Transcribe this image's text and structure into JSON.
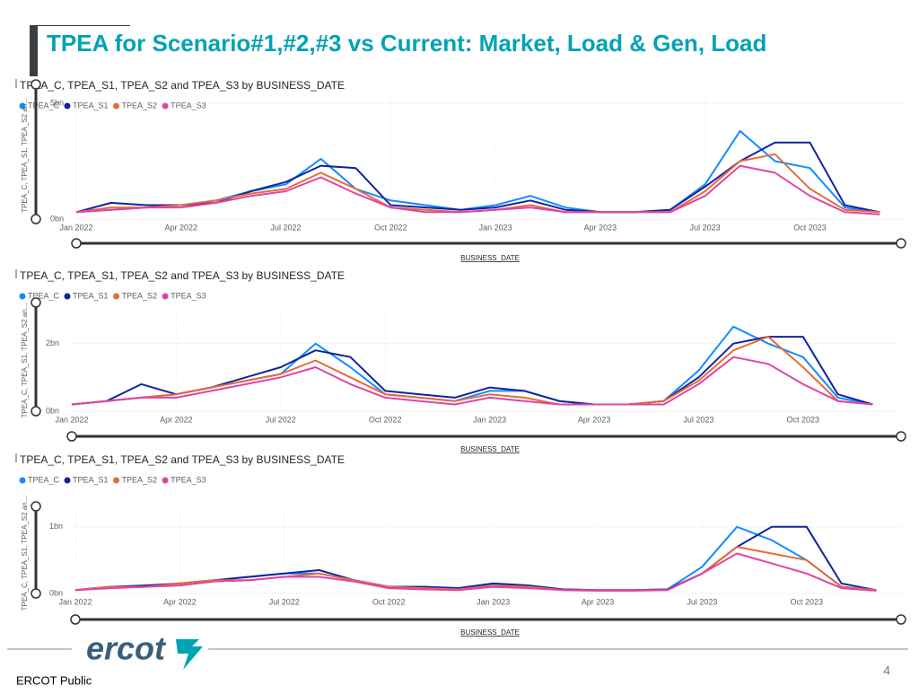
{
  "slide": {
    "title": "TPEA for Scenario#1,#2,#3 vs Current: Market, Load & Gen, Load",
    "logo": "ercot",
    "footer": "ERCOT Public",
    "page_number": "4"
  },
  "chart_data": [
    {
      "type": "line",
      "title": "TPEA_C, TPEA_S1, TPEA_S2 and TPEA_S3 by BUSINESS_DATE",
      "y_label": "TPEA_C, TPEA_S1, TPEA_S2 an...",
      "x_label": "BUSINESS_DATE",
      "x": [
        "Jan 2022",
        null,
        null,
        "Apr 2022",
        null,
        null,
        "Jul 2022",
        null,
        null,
        "Oct 2022",
        null,
        null,
        "Jan 2023",
        null,
        null,
        "Apr 2023",
        null,
        null,
        "Jul 2023",
        null,
        null,
        "Oct 2023",
        null,
        null
      ],
      "ylim": [
        0,
        5.5
      ],
      "yticks": [
        {
          "value": 0,
          "label": "0bn"
        },
        {
          "value": 5,
          "label": "5bn"
        }
      ],
      "grid": true,
      "series": [
        {
          "name": "TPEA_C",
          "color": "#118DFF",
          "values": [
            0.3,
            0.4,
            0.5,
            0.6,
            0.8,
            1.2,
            1.5,
            2.6,
            1.3,
            0.8,
            0.6,
            0.4,
            0.6,
            1.0,
            0.5,
            0.3,
            0.3,
            0.4,
            1.5,
            3.8,
            2.5,
            2.2,
            0.5,
            0.3
          ]
        },
        {
          "name": "TPEA_S1",
          "color": "#12239E",
          "values": [
            0.3,
            0.7,
            0.6,
            0.6,
            0.7,
            1.2,
            1.6,
            2.3,
            2.2,
            0.6,
            0.5,
            0.4,
            0.5,
            0.8,
            0.4,
            0.3,
            0.3,
            0.4,
            1.4,
            2.5,
            3.3,
            3.3,
            0.6,
            0.3
          ]
        },
        {
          "name": "TPEA_S2",
          "color": "#E66C37",
          "values": [
            0.3,
            0.5,
            0.5,
            0.6,
            0.8,
            1.1,
            1.3,
            2.0,
            1.3,
            0.5,
            0.4,
            0.3,
            0.4,
            0.6,
            0.3,
            0.3,
            0.3,
            0.3,
            1.2,
            2.5,
            2.8,
            1.3,
            0.4,
            0.3
          ]
        },
        {
          "name": "TPEA_S3",
          "color": "#E044A7",
          "values": [
            0.3,
            0.4,
            0.5,
            0.5,
            0.7,
            1.0,
            1.2,
            1.8,
            1.1,
            0.5,
            0.3,
            0.3,
            0.4,
            0.5,
            0.3,
            0.3,
            0.3,
            0.3,
            1.0,
            2.3,
            2.0,
            1.0,
            0.3,
            0.2
          ]
        }
      ]
    },
    {
      "type": "line",
      "title": "TPEA_C, TPEA_S1, TPEA_S2 and TPEA_S3 by BUSINESS_DATE",
      "y_label": "TPEA_C, TPEA_S1, TPEA_S2 an...",
      "x_label": "BUSINESS_DATE",
      "x": [
        "Jan 2022",
        null,
        null,
        "Apr 2022",
        null,
        null,
        "Jul 2022",
        null,
        null,
        "Oct 2022",
        null,
        null,
        "Jan 2023",
        null,
        null,
        "Apr 2023",
        null,
        null,
        "Jul 2023",
        null,
        null,
        "Oct 2023",
        null,
        null
      ],
      "ylim": [
        0,
        3.0
      ],
      "yticks": [
        {
          "value": 0,
          "label": "0bn"
        },
        {
          "value": 2,
          "label": "2bn"
        }
      ],
      "grid": true,
      "series": [
        {
          "name": "TPEA_C",
          "color": "#118DFF",
          "values": [
            0.2,
            0.3,
            0.4,
            0.5,
            0.7,
            0.9,
            1.1,
            2.0,
            1.3,
            0.5,
            0.4,
            0.3,
            0.6,
            0.6,
            0.3,
            0.2,
            0.2,
            0.3,
            1.2,
            2.5,
            2.0,
            1.6,
            0.4,
            0.2
          ]
        },
        {
          "name": "TPEA_S1",
          "color": "#12239E",
          "values": [
            0.2,
            0.3,
            0.8,
            0.5,
            0.7,
            1.0,
            1.3,
            1.8,
            1.6,
            0.6,
            0.5,
            0.4,
            0.7,
            0.6,
            0.3,
            0.2,
            0.2,
            0.3,
            1.0,
            2.0,
            2.2,
            2.2,
            0.5,
            0.2
          ]
        },
        {
          "name": "TPEA_S2",
          "color": "#E66C37",
          "values": [
            0.2,
            0.3,
            0.4,
            0.5,
            0.7,
            0.9,
            1.1,
            1.5,
            1.0,
            0.5,
            0.4,
            0.3,
            0.5,
            0.4,
            0.2,
            0.2,
            0.2,
            0.3,
            0.9,
            1.8,
            2.2,
            1.3,
            0.3,
            0.2
          ]
        },
        {
          "name": "TPEA_S3",
          "color": "#E044A7",
          "values": [
            0.2,
            0.3,
            0.4,
            0.4,
            0.6,
            0.8,
            1.0,
            1.3,
            0.8,
            0.4,
            0.3,
            0.2,
            0.4,
            0.3,
            0.2,
            0.2,
            0.2,
            0.2,
            0.8,
            1.6,
            1.4,
            0.8,
            0.3,
            0.2
          ]
        }
      ]
    },
    {
      "type": "line",
      "title": "TPEA_C, TPEA_S1, TPEA_S2 and TPEA_S3 by BUSINESS_DATE",
      "y_label": "TPEA_C, TPEA_S1, TPEA_S2 an...",
      "x_label": "BUSINESS_DATE",
      "x": [
        "Jan 2022",
        null,
        null,
        "Apr 2022",
        null,
        null,
        "Jul 2022",
        null,
        null,
        "Oct 2022",
        null,
        null,
        "Jan 2023",
        null,
        null,
        "Apr 2023",
        null,
        null,
        "Jul 2023",
        null,
        null,
        "Oct 2023",
        null,
        null
      ],
      "ylim": [
        0,
        1.2
      ],
      "yticks": [
        {
          "value": 0,
          "label": "0bn"
        },
        {
          "value": 1,
          "label": "1bn"
        }
      ],
      "grid": true,
      "series": [
        {
          "name": "TPEA_C",
          "color": "#118DFF",
          "values": [
            0.05,
            0.1,
            0.1,
            0.15,
            0.2,
            0.25,
            0.3,
            0.3,
            0.2,
            0.1,
            0.1,
            0.08,
            0.15,
            0.12,
            0.06,
            0.05,
            0.05,
            0.06,
            0.4,
            1.0,
            0.8,
            0.5,
            0.1,
            0.05
          ]
        },
        {
          "name": "TPEA_S1",
          "color": "#12239E",
          "values": [
            0.05,
            0.1,
            0.12,
            0.15,
            0.2,
            0.25,
            0.3,
            0.35,
            0.2,
            0.1,
            0.1,
            0.08,
            0.15,
            0.12,
            0.06,
            0.05,
            0.05,
            0.06,
            0.3,
            0.7,
            1.0,
            1.0,
            0.15,
            0.05
          ]
        },
        {
          "name": "TPEA_S2",
          "color": "#E66C37",
          "values": [
            0.05,
            0.1,
            0.1,
            0.15,
            0.2,
            0.2,
            0.25,
            0.3,
            0.2,
            0.1,
            0.08,
            0.06,
            0.12,
            0.1,
            0.05,
            0.05,
            0.05,
            0.05,
            0.3,
            0.7,
            0.6,
            0.5,
            0.1,
            0.05
          ]
        },
        {
          "name": "TPEA_S3",
          "color": "#E044A7",
          "values": [
            0.05,
            0.08,
            0.1,
            0.12,
            0.18,
            0.2,
            0.25,
            0.25,
            0.18,
            0.08,
            0.06,
            0.05,
            0.1,
            0.08,
            0.05,
            0.04,
            0.04,
            0.05,
            0.3,
            0.6,
            0.45,
            0.3,
            0.08,
            0.04
          ]
        }
      ]
    }
  ]
}
